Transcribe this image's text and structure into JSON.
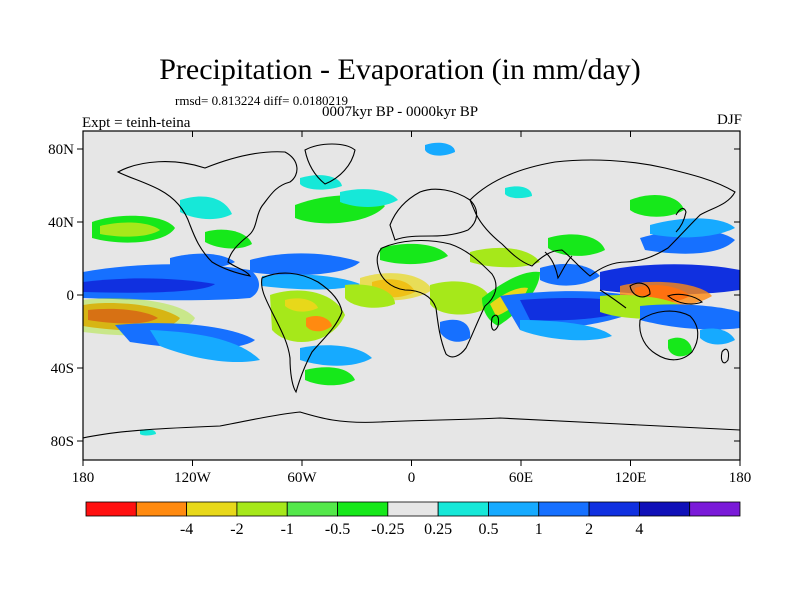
{
  "header": {
    "title": "Precipitation - Evaporation (in mm/day)",
    "stats": "rmsd= 0.813224 diff= 0.0180219",
    "periods": "0007kyr BP - 0000kyr BP",
    "experiment": "Expt = teinh-teina",
    "season": "DJF"
  },
  "map": {
    "background_color": "#e6e6e6",
    "y_axis_labels": [
      "80N",
      "40N",
      "0",
      "40S",
      "80S"
    ],
    "x_axis_labels": [
      "180",
      "120W",
      "60W",
      "0",
      "60E",
      "120E",
      "180"
    ]
  },
  "colorbar": {
    "colors": [
      "#ff1010",
      "#ff8a10",
      "#e8d81a",
      "#a6e81a",
      "#54e84a",
      "#16e81a",
      "#e6e6e6",
      "#16e8d8",
      "#16aaff",
      "#1670ff",
      "#1030e0",
      "#1010b8",
      "#7a1ad8"
    ],
    "tick_labels": [
      "-4",
      "-2",
      "-1",
      "-0.5",
      "-0.25",
      "0.25",
      "0.5",
      "1",
      "2",
      "4"
    ]
  }
}
